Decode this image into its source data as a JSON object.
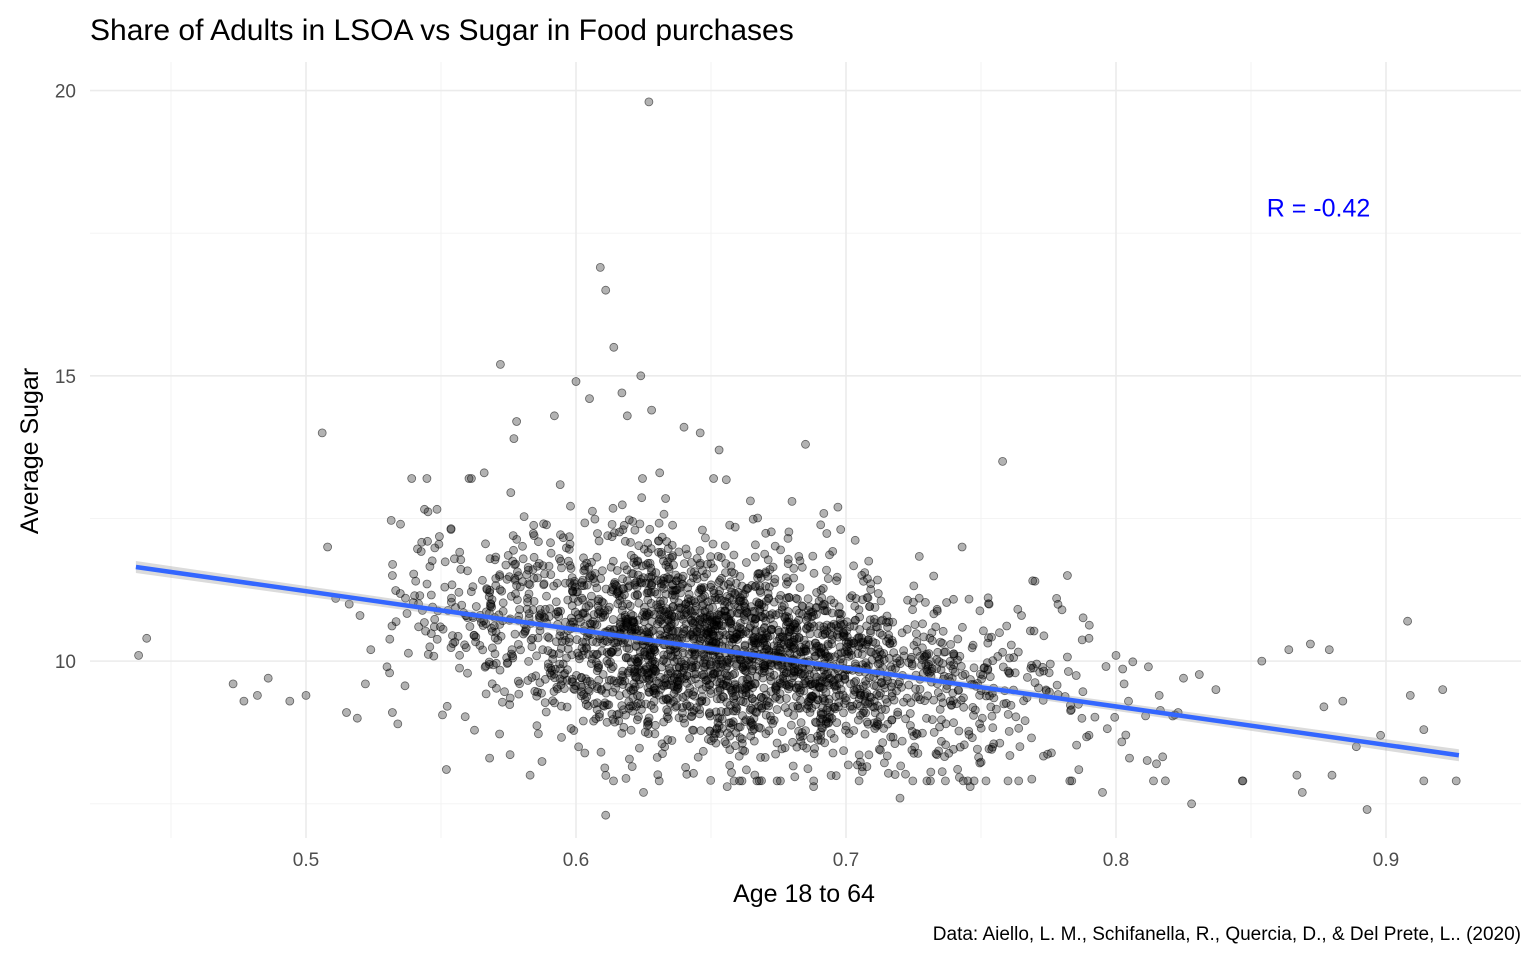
{
  "chart_data": {
    "type": "scatter",
    "title": "Share of Adults in LSOA vs Sugar in Food purchases",
    "xlabel": "Age 18 to 64",
    "ylabel": "Average Sugar",
    "caption": "Data: Aiello, L. M., Schifanella, R., Quercia, D., & Del Prete, L.. (2020)",
    "xlim": [
      0.42,
      0.95
    ],
    "ylim": [
      6.9,
      20.5
    ],
    "x_ticks": [
      0.5,
      0.6,
      0.7,
      0.8,
      0.9
    ],
    "x_tick_labels": [
      "0.5",
      "0.6",
      "0.7",
      "0.8",
      "0.9"
    ],
    "x_minor_ticks": [
      0.45,
      0.55,
      0.65,
      0.75,
      0.85
    ],
    "y_ticks": [
      10,
      15,
      20
    ],
    "y_tick_labels": [
      "10",
      "15",
      "20"
    ],
    "y_minor_ticks": [
      7.5,
      12.5,
      17.5
    ],
    "grid": true,
    "legend": "none",
    "point_color": "#000000",
    "point_alpha": 0.3,
    "trend_line": {
      "type": "linear",
      "color": "#3366FF",
      "x": [
        0.437,
        0.927
      ],
      "y": [
        11.65,
        8.35
      ]
    },
    "annotation": {
      "text": "R = -0.42",
      "x": 0.875,
      "y": 17.95,
      "color": "#0000FF"
    },
    "points": [
      [
        0.627,
        19.8
      ],
      [
        0.609,
        16.9
      ],
      [
        0.611,
        16.5
      ],
      [
        0.614,
        15.5
      ],
      [
        0.624,
        15.0
      ],
      [
        0.572,
        15.2
      ],
      [
        0.6,
        14.9
      ],
      [
        0.605,
        14.6
      ],
      [
        0.617,
        14.7
      ],
      [
        0.592,
        14.3
      ],
      [
        0.628,
        14.4
      ],
      [
        0.619,
        14.3
      ],
      [
        0.578,
        14.2
      ],
      [
        0.506,
        14.0
      ],
      [
        0.64,
        14.1
      ],
      [
        0.646,
        14.0
      ],
      [
        0.577,
        13.9
      ],
      [
        0.685,
        13.8
      ],
      [
        0.758,
        13.5
      ],
      [
        0.653,
        13.7
      ],
      [
        0.566,
        13.3
      ],
      [
        0.631,
        13.3
      ],
      [
        0.68,
        12.8
      ],
      [
        0.697,
        12.7
      ],
      [
        0.743,
        12.0
      ],
      [
        0.508,
        12.0
      ],
      [
        0.535,
        12.4
      ],
      [
        0.545,
        12.1
      ],
      [
        0.532,
        11.5
      ],
      [
        0.52,
        10.8
      ],
      [
        0.516,
        11.0
      ],
      [
        0.511,
        11.1
      ],
      [
        0.524,
        10.2
      ],
      [
        0.53,
        9.9
      ],
      [
        0.522,
        9.6
      ],
      [
        0.515,
        9.1
      ],
      [
        0.519,
        9.0
      ],
      [
        0.532,
        9.1
      ],
      [
        0.534,
        8.9
      ],
      [
        0.5,
        9.4
      ],
      [
        0.486,
        9.7
      ],
      [
        0.482,
        9.4
      ],
      [
        0.477,
        9.3
      ],
      [
        0.473,
        9.6
      ],
      [
        0.494,
        9.3
      ],
      [
        0.441,
        10.4
      ],
      [
        0.438,
        10.1
      ],
      [
        0.552,
        8.1
      ],
      [
        0.568,
        8.3
      ],
      [
        0.583,
        8.0
      ],
      [
        0.611,
        7.3
      ],
      [
        0.625,
        7.7
      ],
      [
        0.656,
        7.8
      ],
      [
        0.688,
        7.8
      ],
      [
        0.72,
        7.6
      ],
      [
        0.746,
        7.8
      ],
      [
        0.76,
        7.9
      ],
      [
        0.795,
        7.7
      ],
      [
        0.828,
        7.5
      ],
      [
        0.869,
        7.7
      ],
      [
        0.893,
        7.4
      ],
      [
        0.926,
        7.9
      ],
      [
        0.914,
        7.9
      ],
      [
        0.908,
        10.7
      ],
      [
        0.921,
        9.5
      ],
      [
        0.879,
        10.2
      ],
      [
        0.872,
        10.3
      ],
      [
        0.864,
        10.2
      ],
      [
        0.854,
        10.0
      ],
      [
        0.909,
        9.4
      ],
      [
        0.914,
        8.8
      ],
      [
        0.884,
        9.3
      ],
      [
        0.877,
        9.2
      ],
      [
        0.898,
        8.7
      ],
      [
        0.867,
        8.0
      ],
      [
        0.88,
        8.0
      ],
      [
        0.847,
        7.9
      ],
      [
        0.889,
        8.5
      ],
      [
        0.837,
        9.5
      ],
      [
        0.825,
        9.7
      ],
      [
        0.782,
        11.5
      ],
      [
        0.778,
        11.1
      ],
      [
        0.77,
        11.4
      ],
      [
        0.753,
        11.0
      ],
      [
        0.765,
        10.8
      ],
      [
        0.78,
        10.9
      ],
      [
        0.79,
        10.4
      ],
      [
        0.8,
        10.1
      ],
      [
        0.812,
        9.9
      ],
      [
        0.803,
        9.6
      ],
      [
        0.816,
        9.4
      ],
      [
        0.823,
        9.1
      ],
      [
        0.79,
        8.7
      ],
      [
        0.805,
        8.3
      ],
      [
        0.815,
        8.2
      ]
    ],
    "cloud": {
      "count": 2800,
      "x_mean": 0.655,
      "x_sd": 0.052,
      "x_range": [
        0.53,
        0.85
      ],
      "y_sd": 0.88
    }
  }
}
